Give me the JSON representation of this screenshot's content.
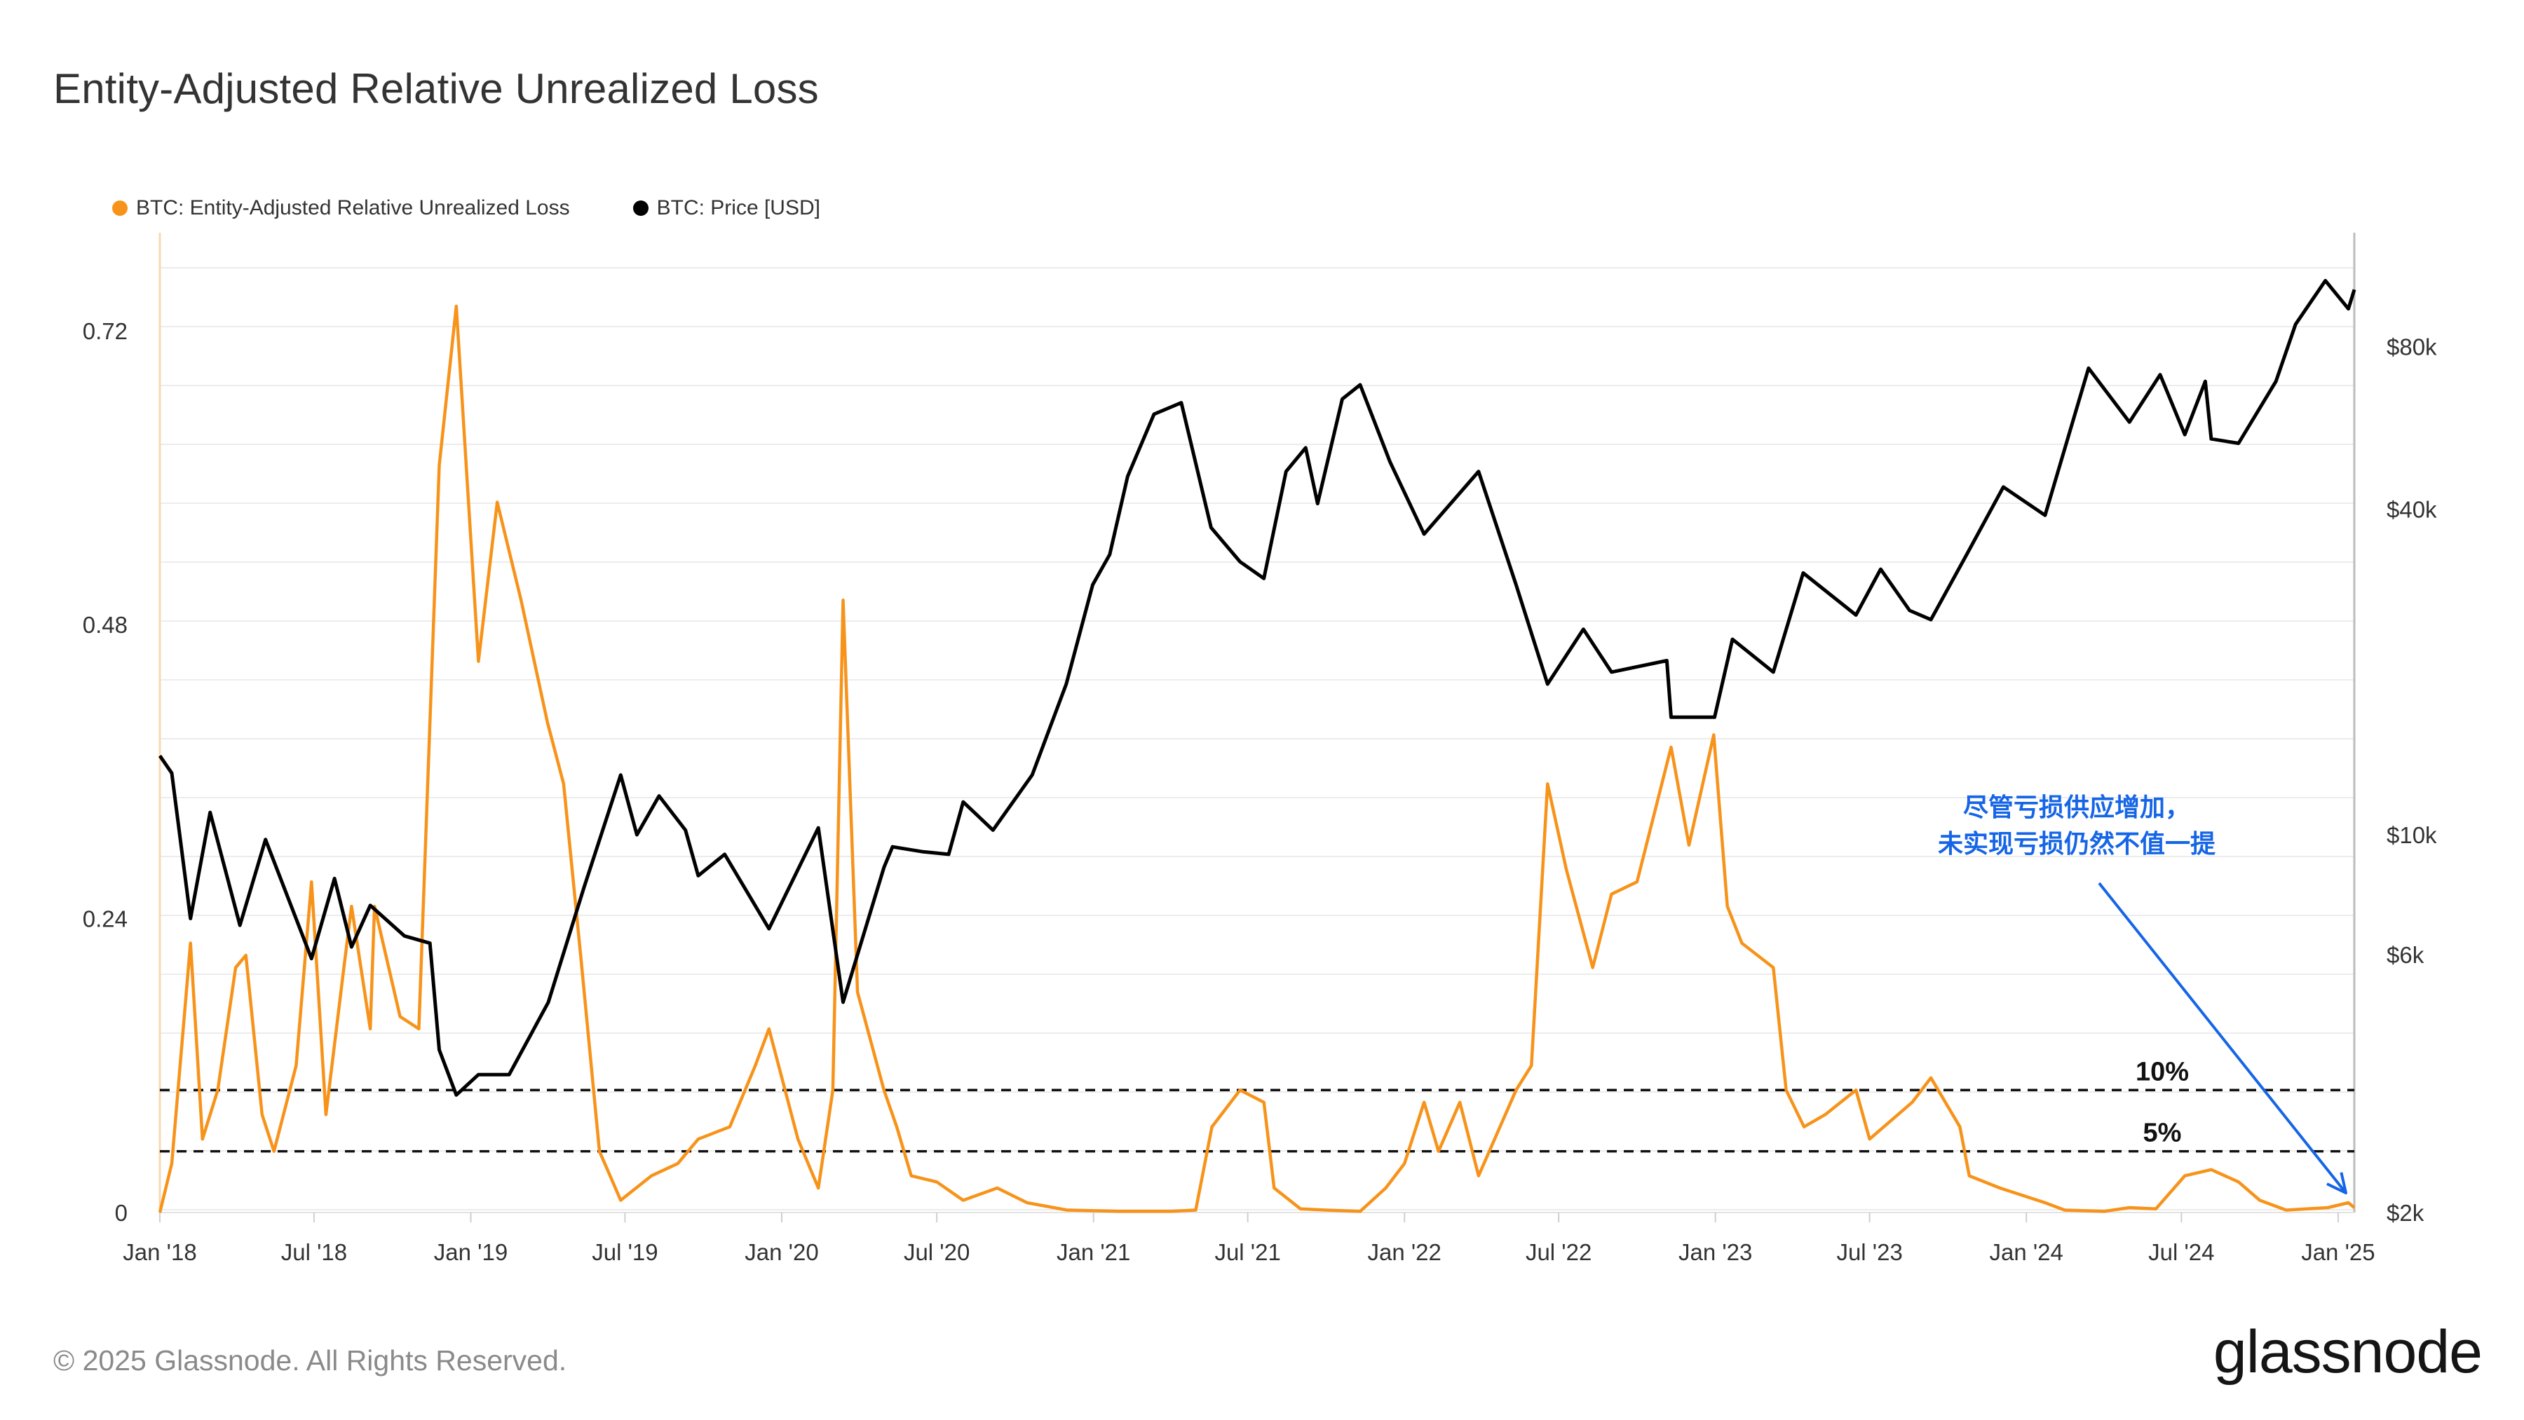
{
  "title": "Entity-Adjusted Relative Unrealized Loss",
  "footer": "© 2025 Glassnode. All Rights Reserved.",
  "brand": "glassnode",
  "colors": {
    "loss": "#f7931a",
    "price": "#000000",
    "annotation": "#1565e6"
  },
  "chart_data": {
    "type": "line",
    "title": "Entity-Adjusted Relative Unrealized Loss",
    "x_ticks": [
      "Jan '18",
      "Jul '18",
      "Jan '19",
      "Jul '19",
      "Jan '20",
      "Jul '20",
      "Jan '21",
      "Jul '21",
      "Jan '22",
      "Jul '22",
      "Jan '23",
      "Jul '23",
      "Jan '24",
      "Jul '24",
      "Jan '25"
    ],
    "x_range": [
      "2018-01-01",
      "2025-01-20"
    ],
    "y_left": {
      "ticks": [
        "0",
        "0.24",
        "0.48",
        "0.72"
      ],
      "values": [
        0,
        0.24,
        0.48,
        0.72
      ],
      "range": [
        0,
        0.8
      ]
    },
    "y_right": {
      "scale": "log",
      "ticks": [
        "$2k",
        "$6k",
        "$10k",
        "$40k",
        "$80k"
      ],
      "values": [
        2000,
        6000,
        10000,
        40000,
        80000
      ],
      "range": [
        2000,
        130000
      ]
    },
    "grid": "horizontal",
    "legend_position": "top-left",
    "series": [
      {
        "name": "BTC: Entity-Adjusted Relative Unrealized Loss",
        "axis": "left",
        "color": "#f7931a",
        "points": [
          [
            "2018-01-01",
            0.0
          ],
          [
            "2018-01-15",
            0.04
          ],
          [
            "2018-02-06",
            0.22
          ],
          [
            "2018-02-20",
            0.06
          ],
          [
            "2018-03-10",
            0.1
          ],
          [
            "2018-03-31",
            0.2
          ],
          [
            "2018-04-12",
            0.21
          ],
          [
            "2018-05-01",
            0.08
          ],
          [
            "2018-05-15",
            0.05
          ],
          [
            "2018-06-10",
            0.12
          ],
          [
            "2018-06-28",
            0.27
          ],
          [
            "2018-07-15",
            0.08
          ],
          [
            "2018-08-05",
            0.2
          ],
          [
            "2018-08-14",
            0.25
          ],
          [
            "2018-09-05",
            0.15
          ],
          [
            "2018-09-10",
            0.25
          ],
          [
            "2018-10-10",
            0.16
          ],
          [
            "2018-11-01",
            0.15
          ],
          [
            "2018-11-14",
            0.4
          ],
          [
            "2018-11-25",
            0.61
          ],
          [
            "2018-12-15",
            0.74
          ],
          [
            "2019-01-10",
            0.45
          ],
          [
            "2019-02-01",
            0.58
          ],
          [
            "2019-03-01",
            0.5
          ],
          [
            "2019-04-01",
            0.4
          ],
          [
            "2019-04-20",
            0.35
          ],
          [
            "2019-05-10",
            0.21
          ],
          [
            "2019-06-01",
            0.05
          ],
          [
            "2019-06-26",
            0.01
          ],
          [
            "2019-08-01",
            0.03
          ],
          [
            "2019-09-01",
            0.04
          ],
          [
            "2019-09-25",
            0.06
          ],
          [
            "2019-11-01",
            0.07
          ],
          [
            "2019-12-01",
            0.12
          ],
          [
            "2019-12-17",
            0.15
          ],
          [
            "2020-01-20",
            0.06
          ],
          [
            "2020-02-13",
            0.02
          ],
          [
            "2020-03-01",
            0.1
          ],
          [
            "2020-03-13",
            0.5
          ],
          [
            "2020-03-30",
            0.18
          ],
          [
            "2020-04-30",
            0.1
          ],
          [
            "2020-05-15",
            0.07
          ],
          [
            "2020-06-01",
            0.03
          ],
          [
            "2020-07-01",
            0.025
          ],
          [
            "2020-08-01",
            0.01
          ],
          [
            "2020-09-10",
            0.02
          ],
          [
            "2020-10-15",
            0.008
          ],
          [
            "2020-12-01",
            0.002
          ],
          [
            "2021-02-01",
            0.001
          ],
          [
            "2021-04-01",
            0.001
          ],
          [
            "2021-05-01",
            0.002
          ],
          [
            "2021-05-20",
            0.07
          ],
          [
            "2021-06-22",
            0.1
          ],
          [
            "2021-07-20",
            0.09
          ],
          [
            "2021-08-01",
            0.02
          ],
          [
            "2021-09-01",
            0.003
          ],
          [
            "2021-10-01",
            0.002
          ],
          [
            "2021-11-10",
            0.001
          ],
          [
            "2021-12-10",
            0.02
          ],
          [
            "2022-01-01",
            0.04
          ],
          [
            "2022-01-24",
            0.09
          ],
          [
            "2022-02-10",
            0.05
          ],
          [
            "2022-03-07",
            0.09
          ],
          [
            "2022-03-29",
            0.03
          ],
          [
            "2022-05-12",
            0.1
          ],
          [
            "2022-05-30",
            0.12
          ],
          [
            "2022-06-18",
            0.35
          ],
          [
            "2022-07-10",
            0.28
          ],
          [
            "2022-08-10",
            0.2
          ],
          [
            "2022-09-01",
            0.26
          ],
          [
            "2022-10-01",
            0.27
          ],
          [
            "2022-11-10",
            0.38
          ],
          [
            "2022-12-01",
            0.3
          ],
          [
            "2022-12-30",
            0.39
          ],
          [
            "2023-01-15",
            0.25
          ],
          [
            "2023-02-01",
            0.22
          ],
          [
            "2023-03-10",
            0.2
          ],
          [
            "2023-03-25",
            0.1
          ],
          [
            "2023-04-15",
            0.07
          ],
          [
            "2023-05-10",
            0.08
          ],
          [
            "2023-06-15",
            0.1
          ],
          [
            "2023-07-01",
            0.06
          ],
          [
            "2023-08-20",
            0.09
          ],
          [
            "2023-09-11",
            0.11
          ],
          [
            "2023-10-15",
            0.07
          ],
          [
            "2023-10-26",
            0.03
          ],
          [
            "2023-12-01",
            0.02
          ],
          [
            "2024-01-23",
            0.008
          ],
          [
            "2024-02-15",
            0.002
          ],
          [
            "2024-04-01",
            0.001
          ],
          [
            "2024-05-01",
            0.004
          ],
          [
            "2024-06-01",
            0.003
          ],
          [
            "2024-07-05",
            0.03
          ],
          [
            "2024-08-05",
            0.035
          ],
          [
            "2024-09-06",
            0.025
          ],
          [
            "2024-10-01",
            0.01
          ],
          [
            "2024-11-01",
            0.002
          ],
          [
            "2024-12-20",
            0.004
          ],
          [
            "2025-01-13",
            0.008
          ],
          [
            "2025-01-20",
            0.004
          ]
        ]
      },
      {
        "name": "BTC: Price [USD]",
        "axis": "right",
        "color": "#000000",
        "points": [
          [
            "2018-01-01",
            14000
          ],
          [
            "2018-01-15",
            13000
          ],
          [
            "2018-02-06",
            7000
          ],
          [
            "2018-03-01",
            11000
          ],
          [
            "2018-04-05",
            6800
          ],
          [
            "2018-05-05",
            9800
          ],
          [
            "2018-06-28",
            5900
          ],
          [
            "2018-07-25",
            8300
          ],
          [
            "2018-08-14",
            6200
          ],
          [
            "2018-09-05",
            7400
          ],
          [
            "2018-10-15",
            6500
          ],
          [
            "2018-11-14",
            6300
          ],
          [
            "2018-11-25",
            4000
          ],
          [
            "2018-12-15",
            3300
          ],
          [
            "2019-01-10",
            3600
          ],
          [
            "2019-02-15",
            3600
          ],
          [
            "2019-04-02",
            4900
          ],
          [
            "2019-05-14",
            8000
          ],
          [
            "2019-06-26",
            12900
          ],
          [
            "2019-07-15",
            10000
          ],
          [
            "2019-08-10",
            11800
          ],
          [
            "2019-09-10",
            10200
          ],
          [
            "2019-09-25",
            8400
          ],
          [
            "2019-10-26",
            9200
          ],
          [
            "2019-12-17",
            6700
          ],
          [
            "2020-02-13",
            10300
          ],
          [
            "2020-03-13",
            4900
          ],
          [
            "2020-04-30",
            8700
          ],
          [
            "2020-05-10",
            9500
          ],
          [
            "2020-06-15",
            9300
          ],
          [
            "2020-07-15",
            9200
          ],
          [
            "2020-08-01",
            11500
          ],
          [
            "2020-09-05",
            10200
          ],
          [
            "2020-10-21",
            12900
          ],
          [
            "2020-11-30",
            19000
          ],
          [
            "2020-12-31",
            29000
          ],
          [
            "2021-01-20",
            33000
          ],
          [
            "2021-02-10",
            46000
          ],
          [
            "2021-03-13",
            60000
          ],
          [
            "2021-04-14",
            63000
          ],
          [
            "2021-05-19",
            37000
          ],
          [
            "2021-06-22",
            32000
          ],
          [
            "2021-07-20",
            29800
          ],
          [
            "2021-08-15",
            47000
          ],
          [
            "2021-09-07",
            52000
          ],
          [
            "2021-09-21",
            41000
          ],
          [
            "2021-10-20",
            64000
          ],
          [
            "2021-11-10",
            68000
          ],
          [
            "2021-12-15",
            49000
          ],
          [
            "2022-01-24",
            36000
          ],
          [
            "2022-03-29",
            47000
          ],
          [
            "2022-05-12",
            29000
          ],
          [
            "2022-06-18",
            19000
          ],
          [
            "2022-07-30",
            24000
          ],
          [
            "2022-09-01",
            20000
          ],
          [
            "2022-11-05",
            21000
          ],
          [
            "2022-11-10",
            16500
          ],
          [
            "2022-12-31",
            16500
          ],
          [
            "2023-01-21",
            23000
          ],
          [
            "2023-03-10",
            20000
          ],
          [
            "2023-04-14",
            30500
          ],
          [
            "2023-06-15",
            25500
          ],
          [
            "2023-07-14",
            31000
          ],
          [
            "2023-08-17",
            26000
          ],
          [
            "2023-09-11",
            25000
          ],
          [
            "2023-10-23",
            33000
          ],
          [
            "2023-12-05",
            44000
          ],
          [
            "2024-01-23",
            39000
          ],
          [
            "2024-03-14",
            73000
          ],
          [
            "2024-05-01",
            58000
          ],
          [
            "2024-06-06",
            71000
          ],
          [
            "2024-07-05",
            55000
          ],
          [
            "2024-07-29",
            69000
          ],
          [
            "2024-08-05",
            54000
          ],
          [
            "2024-09-06",
            53000
          ],
          [
            "2024-10-20",
            69000
          ],
          [
            "2024-11-12",
            88000
          ],
          [
            "2024-12-17",
            106000
          ],
          [
            "2025-01-13",
            94000
          ],
          [
            "2025-01-20",
            102000
          ]
        ]
      }
    ],
    "reference_lines": [
      {
        "label": "10%",
        "value": 0.1
      },
      {
        "label": "5%",
        "value": 0.05
      }
    ],
    "annotation": {
      "lines": [
        "尽管亏损供应增加，",
        "未实现亏损仍然不值一提"
      ],
      "arrow_target": "2025-01-20"
    }
  }
}
